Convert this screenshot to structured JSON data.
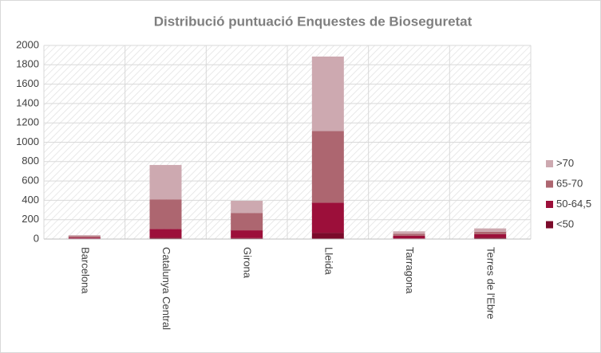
{
  "chart_data": {
    "type": "stacked_bar",
    "title": "Distribució puntuació Enquestes de Bioseguretat",
    "categories": [
      "Barcelona",
      "Catalunya Central",
      "Girona",
      "Lleida",
      "Tarragona",
      "Terres de l'Ebre"
    ],
    "series": [
      {
        "name": "<50",
        "color": "#7b0a2a",
        "values": [
          5,
          15,
          10,
          65,
          5,
          15
        ]
      },
      {
        "name": "50-64,5",
        "color": "#9c0f3a",
        "values": [
          10,
          90,
          80,
          310,
          30,
          35
        ]
      },
      {
        "name": "65-70",
        "color": "#ad6670",
        "values": [
          15,
          305,
          180,
          740,
          20,
          25
        ]
      },
      {
        "name": ">70",
        "color": "#cda9b0",
        "values": [
          10,
          355,
          125,
          770,
          25,
          35
        ]
      }
    ],
    "ylim": [
      0,
      2000
    ],
    "yticks": [
      0,
      200,
      400,
      600,
      800,
      1000,
      1200,
      1400,
      1600,
      1800,
      2000
    ],
    "grid": true,
    "legend": "right"
  }
}
